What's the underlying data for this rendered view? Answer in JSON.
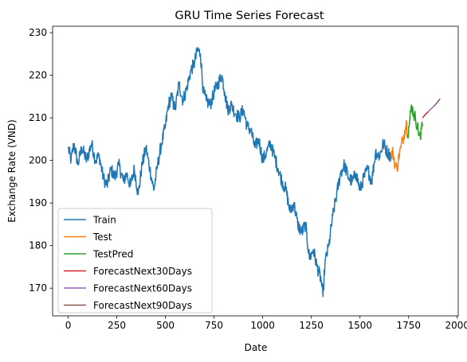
{
  "chart_data": {
    "type": "line",
    "title": "GRU Time Series Forecast",
    "xlabel": "Date",
    "ylabel": "Exchange Rate (VND)",
    "xlim": [
      -80,
      2005
    ],
    "ylim": [
      163.5,
      231.5
    ],
    "xticks": [
      0,
      250,
      500,
      750,
      1000,
      1250,
      1500,
      1750,
      2000
    ],
    "yticks": [
      170,
      180,
      190,
      200,
      210,
      220,
      230
    ],
    "grid": false,
    "legend": "lower-left",
    "series": [
      {
        "name": "Train",
        "color": "#1f77b4",
        "anchors": [
          [
            0,
            203
          ],
          [
            15,
            200
          ],
          [
            30,
            204
          ],
          [
            50,
            199
          ],
          [
            70,
            203
          ],
          [
            95,
            200
          ],
          [
            120,
            204
          ],
          [
            140,
            200
          ],
          [
            160,
            201
          ],
          [
            180,
            196
          ],
          [
            200,
            194
          ],
          [
            220,
            198
          ],
          [
            240,
            196
          ],
          [
            260,
            199
          ],
          [
            285,
            195
          ],
          [
            300,
            197
          ],
          [
            320,
            194
          ],
          [
            340,
            198
          ],
          [
            360,
            192
          ],
          [
            380,
            199
          ],
          [
            400,
            203
          ],
          [
            420,
            198
          ],
          [
            440,
            193
          ],
          [
            460,
            199
          ],
          [
            480,
            204
          ],
          [
            500,
            208
          ],
          [
            515,
            213
          ],
          [
            530,
            215
          ],
          [
            550,
            212
          ],
          [
            570,
            218
          ],
          [
            590,
            214
          ],
          [
            610,
            217
          ],
          [
            630,
            221
          ],
          [
            650,
            223
          ],
          [
            665,
            226
          ],
          [
            680,
            225
          ],
          [
            695,
            216
          ],
          [
            710,
            214
          ],
          [
            730,
            213
          ],
          [
            750,
            216
          ],
          [
            770,
            218
          ],
          [
            790,
            220
          ],
          [
            805,
            216
          ],
          [
            820,
            212
          ],
          [
            840,
            213
          ],
          [
            860,
            211
          ],
          [
            880,
            210
          ],
          [
            900,
            212
          ],
          [
            920,
            208
          ],
          [
            940,
            207
          ],
          [
            960,
            203
          ],
          [
            980,
            205
          ],
          [
            1000,
            200
          ],
          [
            1020,
            202
          ],
          [
            1040,
            204
          ],
          [
            1060,
            201
          ],
          [
            1080,
            198
          ],
          [
            1100,
            195
          ],
          [
            1120,
            193
          ],
          [
            1140,
            188
          ],
          [
            1160,
            190
          ],
          [
            1180,
            185
          ],
          [
            1200,
            183
          ],
          [
            1220,
            185
          ],
          [
            1240,
            177
          ],
          [
            1260,
            179
          ],
          [
            1280,
            175
          ],
          [
            1300,
            172
          ],
          [
            1310,
            168
          ],
          [
            1320,
            176
          ],
          [
            1340,
            180
          ],
          [
            1360,
            187
          ],
          [
            1380,
            192
          ],
          [
            1400,
            197
          ],
          [
            1420,
            199
          ],
          [
            1440,
            196
          ],
          [
            1460,
            195
          ],
          [
            1480,
            197
          ],
          [
            1500,
            193
          ],
          [
            1520,
            196
          ],
          [
            1540,
            198
          ],
          [
            1560,
            195
          ],
          [
            1580,
            202
          ],
          [
            1600,
            201
          ],
          [
            1620,
            204
          ],
          [
            1640,
            202
          ],
          [
            1660,
            201
          ]
        ]
      },
      {
        "name": "Test",
        "color": "#ff7f0e",
        "anchors": [
          [
            1660,
            201
          ],
          [
            1670,
            202
          ],
          [
            1680,
            199
          ],
          [
            1690,
            198
          ],
          [
            1700,
            201
          ],
          [
            1710,
            203
          ],
          [
            1720,
            205
          ],
          [
            1730,
            207
          ],
          [
            1740,
            209
          ],
          [
            1745,
            206
          ]
        ]
      },
      {
        "name": "TestPred",
        "color": "#2ca02c",
        "anchors": [
          [
            1745,
            206
          ],
          [
            1755,
            209
          ],
          [
            1765,
            213
          ],
          [
            1775,
            211
          ],
          [
            1785,
            210
          ],
          [
            1795,
            208
          ],
          [
            1805,
            206
          ],
          [
            1812,
            205
          ],
          [
            1818,
            209
          ],
          [
            1822,
            208
          ]
        ]
      },
      {
        "name": "ForecastNext30Days",
        "color": "#d62728",
        "anchors": [
          [
            1822,
            210
          ],
          [
            1836,
            210.8
          ],
          [
            1852,
            211.5
          ]
        ]
      },
      {
        "name": "ForecastNext60Days",
        "color": "#9467bd",
        "anchors": [
          [
            1852,
            211.5
          ],
          [
            1867,
            212.2
          ],
          [
            1882,
            212.8
          ]
        ]
      },
      {
        "name": "ForecastNext90Days",
        "color": "#8c564b",
        "anchors": [
          [
            1882,
            212.8
          ],
          [
            1897,
            213.6
          ],
          [
            1912,
            214.5
          ]
        ]
      }
    ]
  }
}
